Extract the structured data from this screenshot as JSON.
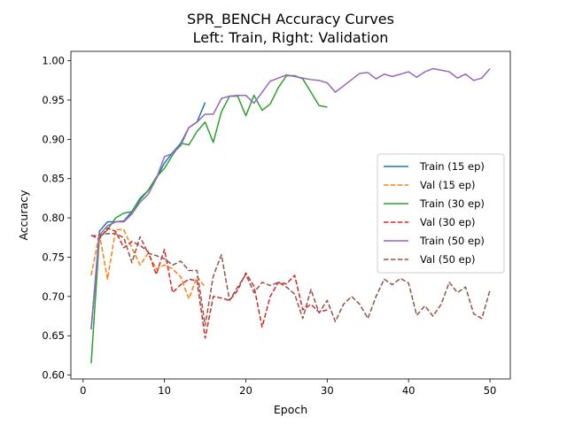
{
  "chart_data": {
    "type": "line",
    "title_line1": "SPR_BENCH Accuracy Curves",
    "title_line2": "Left: Train, Right: Validation",
    "xlabel": "Epoch",
    "ylabel": "Accuracy",
    "xlim": [
      -1.5,
      52.5
    ],
    "ylim": [
      0.595,
      1.012
    ],
    "xticks": [
      0,
      10,
      20,
      30,
      40,
      50
    ],
    "yticks": [
      0.6,
      0.65,
      0.7,
      0.75,
      0.8,
      0.85,
      0.9,
      0.95,
      1.0
    ],
    "xtick_labels": [
      "0",
      "10",
      "20",
      "30",
      "40",
      "50"
    ],
    "ytick_labels": [
      "0.60",
      "0.65",
      "0.70",
      "0.75",
      "0.80",
      "0.85",
      "0.90",
      "0.95",
      "1.00"
    ],
    "grid": false,
    "legend_position": "center-right",
    "series": [
      {
        "name": "Train (15 ep)",
        "color": "#1f77b4",
        "dashed": false,
        "x": [
          1,
          2,
          3,
          4,
          5,
          6,
          7,
          8,
          9,
          10,
          11,
          12,
          13,
          14,
          15
        ],
        "values": [
          0.658,
          0.783,
          0.795,
          0.795,
          0.796,
          0.808,
          0.825,
          0.835,
          0.85,
          0.87,
          0.883,
          0.895,
          0.915,
          0.922,
          0.947
        ]
      },
      {
        "name": "Val (15 ep)",
        "color": "#ff7f0e",
        "dashed": true,
        "x": [
          1,
          2,
          3,
          4,
          5,
          6,
          7,
          8,
          9,
          10,
          11,
          12,
          13,
          14,
          15
        ],
        "values": [
          0.727,
          0.78,
          0.722,
          0.785,
          0.785,
          0.762,
          0.74,
          0.755,
          0.735,
          0.74,
          0.735,
          0.725,
          0.697,
          0.725,
          0.712
        ]
      },
      {
        "name": "Train (30 ep)",
        "color": "#2ca02c",
        "dashed": false,
        "x": [
          1,
          2,
          3,
          4,
          5,
          6,
          7,
          8,
          9,
          10,
          11,
          12,
          13,
          14,
          15,
          16,
          17,
          18,
          19,
          20,
          21,
          22,
          23,
          24,
          25,
          26,
          27,
          28,
          29,
          30
        ],
        "values": [
          0.615,
          0.775,
          0.785,
          0.8,
          0.806,
          0.808,
          0.823,
          0.835,
          0.852,
          0.863,
          0.88,
          0.895,
          0.893,
          0.91,
          0.922,
          0.896,
          0.935,
          0.955,
          0.955,
          0.93,
          0.956,
          0.937,
          0.945,
          0.966,
          0.981,
          0.981,
          0.977,
          0.96,
          0.943,
          0.941
        ]
      },
      {
        "name": "Val (30 ep)",
        "color": "#d62728",
        "dashed": true,
        "x": [
          1,
          2,
          3,
          4,
          5,
          6,
          7,
          8,
          9,
          10,
          11,
          12,
          13,
          14,
          15,
          16,
          17,
          18,
          19,
          20,
          21,
          22,
          23,
          24,
          25,
          26,
          27,
          28,
          29,
          30
        ],
        "values": [
          0.778,
          0.773,
          0.787,
          0.783,
          0.762,
          0.77,
          0.765,
          0.757,
          0.728,
          0.76,
          0.705,
          0.715,
          0.722,
          0.72,
          0.647,
          0.7,
          0.698,
          0.695,
          0.708,
          0.73,
          0.713,
          0.661,
          0.7,
          0.718,
          0.716,
          0.727,
          0.683,
          0.69,
          0.68,
          0.683
        ]
      },
      {
        "name": "Train (50 ep)",
        "color": "#9467bd",
        "dashed": false,
        "x": [
          1,
          2,
          3,
          4,
          5,
          6,
          7,
          8,
          9,
          10,
          11,
          12,
          13,
          14,
          15,
          16,
          17,
          18,
          19,
          20,
          21,
          22,
          23,
          24,
          25,
          26,
          27,
          28,
          29,
          30,
          31,
          32,
          33,
          34,
          35,
          36,
          37,
          38,
          39,
          40,
          41,
          42,
          43,
          44,
          45,
          46,
          47,
          48,
          49,
          50
        ],
        "values": [
          0.66,
          0.778,
          0.79,
          0.795,
          0.795,
          0.805,
          0.82,
          0.83,
          0.85,
          0.878,
          0.882,
          0.892,
          0.915,
          0.922,
          0.932,
          0.932,
          0.952,
          0.955,
          0.956,
          0.956,
          0.946,
          0.96,
          0.974,
          0.978,
          0.982,
          0.98,
          0.978,
          0.976,
          0.975,
          0.972,
          0.96,
          0.968,
          0.976,
          0.984,
          0.985,
          0.977,
          0.983,
          0.98,
          0.983,
          0.986,
          0.979,
          0.986,
          0.99,
          0.988,
          0.986,
          0.978,
          0.983,
          0.975,
          0.978,
          0.99
        ]
      },
      {
        "name": "Val (50 ep)",
        "color": "#8c564b",
        "dashed": true,
        "x": [
          1,
          2,
          3,
          4,
          5,
          6,
          7,
          8,
          9,
          10,
          11,
          12,
          13,
          14,
          15,
          16,
          17,
          18,
          19,
          20,
          21,
          22,
          23,
          24,
          25,
          26,
          27,
          28,
          29,
          30,
          31,
          32,
          33,
          34,
          35,
          36,
          37,
          38,
          39,
          40,
          41,
          42,
          43,
          44,
          45,
          46,
          47,
          48,
          49,
          50
        ],
        "values": [
          0.777,
          0.778,
          0.78,
          0.78,
          0.775,
          0.743,
          0.776,
          0.755,
          0.752,
          0.748,
          0.74,
          0.745,
          0.733,
          0.733,
          0.663,
          0.726,
          0.753,
          0.695,
          0.712,
          0.728,
          0.705,
          0.718,
          0.714,
          0.718,
          0.712,
          0.703,
          0.672,
          0.709,
          0.679,
          0.695,
          0.668,
          0.69,
          0.7,
          0.69,
          0.672,
          0.7,
          0.722,
          0.715,
          0.723,
          0.717,
          0.676,
          0.688,
          0.675,
          0.69,
          0.718,
          0.705,
          0.712,
          0.678,
          0.672,
          0.708
        ]
      }
    ]
  }
}
